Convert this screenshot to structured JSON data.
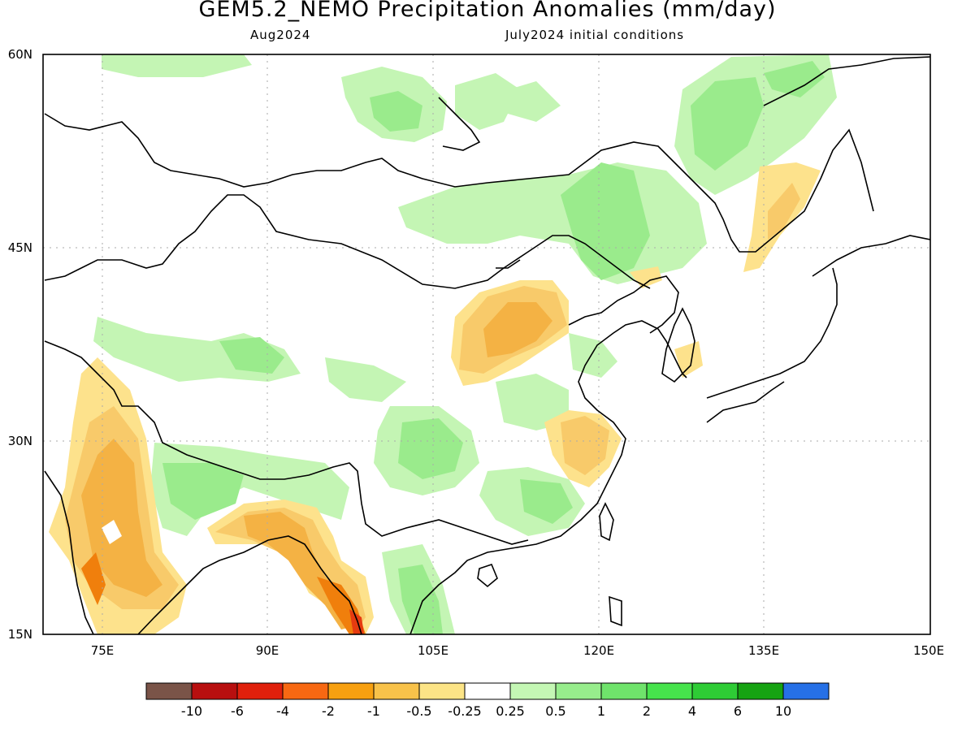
{
  "header": {
    "title": "GEM5.2_NEMO Precipitation Anomalies (mm/day)",
    "subtitle_left": "Aug2024",
    "subtitle_right": "July2024 initial conditions"
  },
  "map": {
    "lat_labels": [
      "60N",
      "45N",
      "30N",
      "15N"
    ],
    "lon_labels": [
      "75E",
      "90E",
      "105E",
      "120E",
      "135E",
      "150E"
    ],
    "colors": {
      "strong_dry": "#f4b244",
      "moderate_dry": "#f8ca6a",
      "weak_dry": "#fde28c",
      "very_strong_dry": "#f07f0c",
      "extreme_dry": "#e63b10",
      "weak_wet": "#c4f5b4",
      "moderate_wet": "#9aeb8c",
      "strong_wet": "#75df6c"
    }
  },
  "colorbar": {
    "colors": [
      "#7a5448",
      "#b80f0f",
      "#e0200c",
      "#f76812",
      "#f7a010",
      "#f8c24a",
      "#fce486",
      "#ffffff",
      "#c4f7b4",
      "#97ed8c",
      "#6fe36b",
      "#46e34c",
      "#2ecc35",
      "#16a312",
      "#2670e6"
    ],
    "labels": [
      "-10",
      "-6",
      "-4",
      "-2",
      "-1",
      "-0.5",
      "-0.25",
      "0.25",
      "0.5",
      "1",
      "2",
      "4",
      "6",
      "10"
    ]
  }
}
